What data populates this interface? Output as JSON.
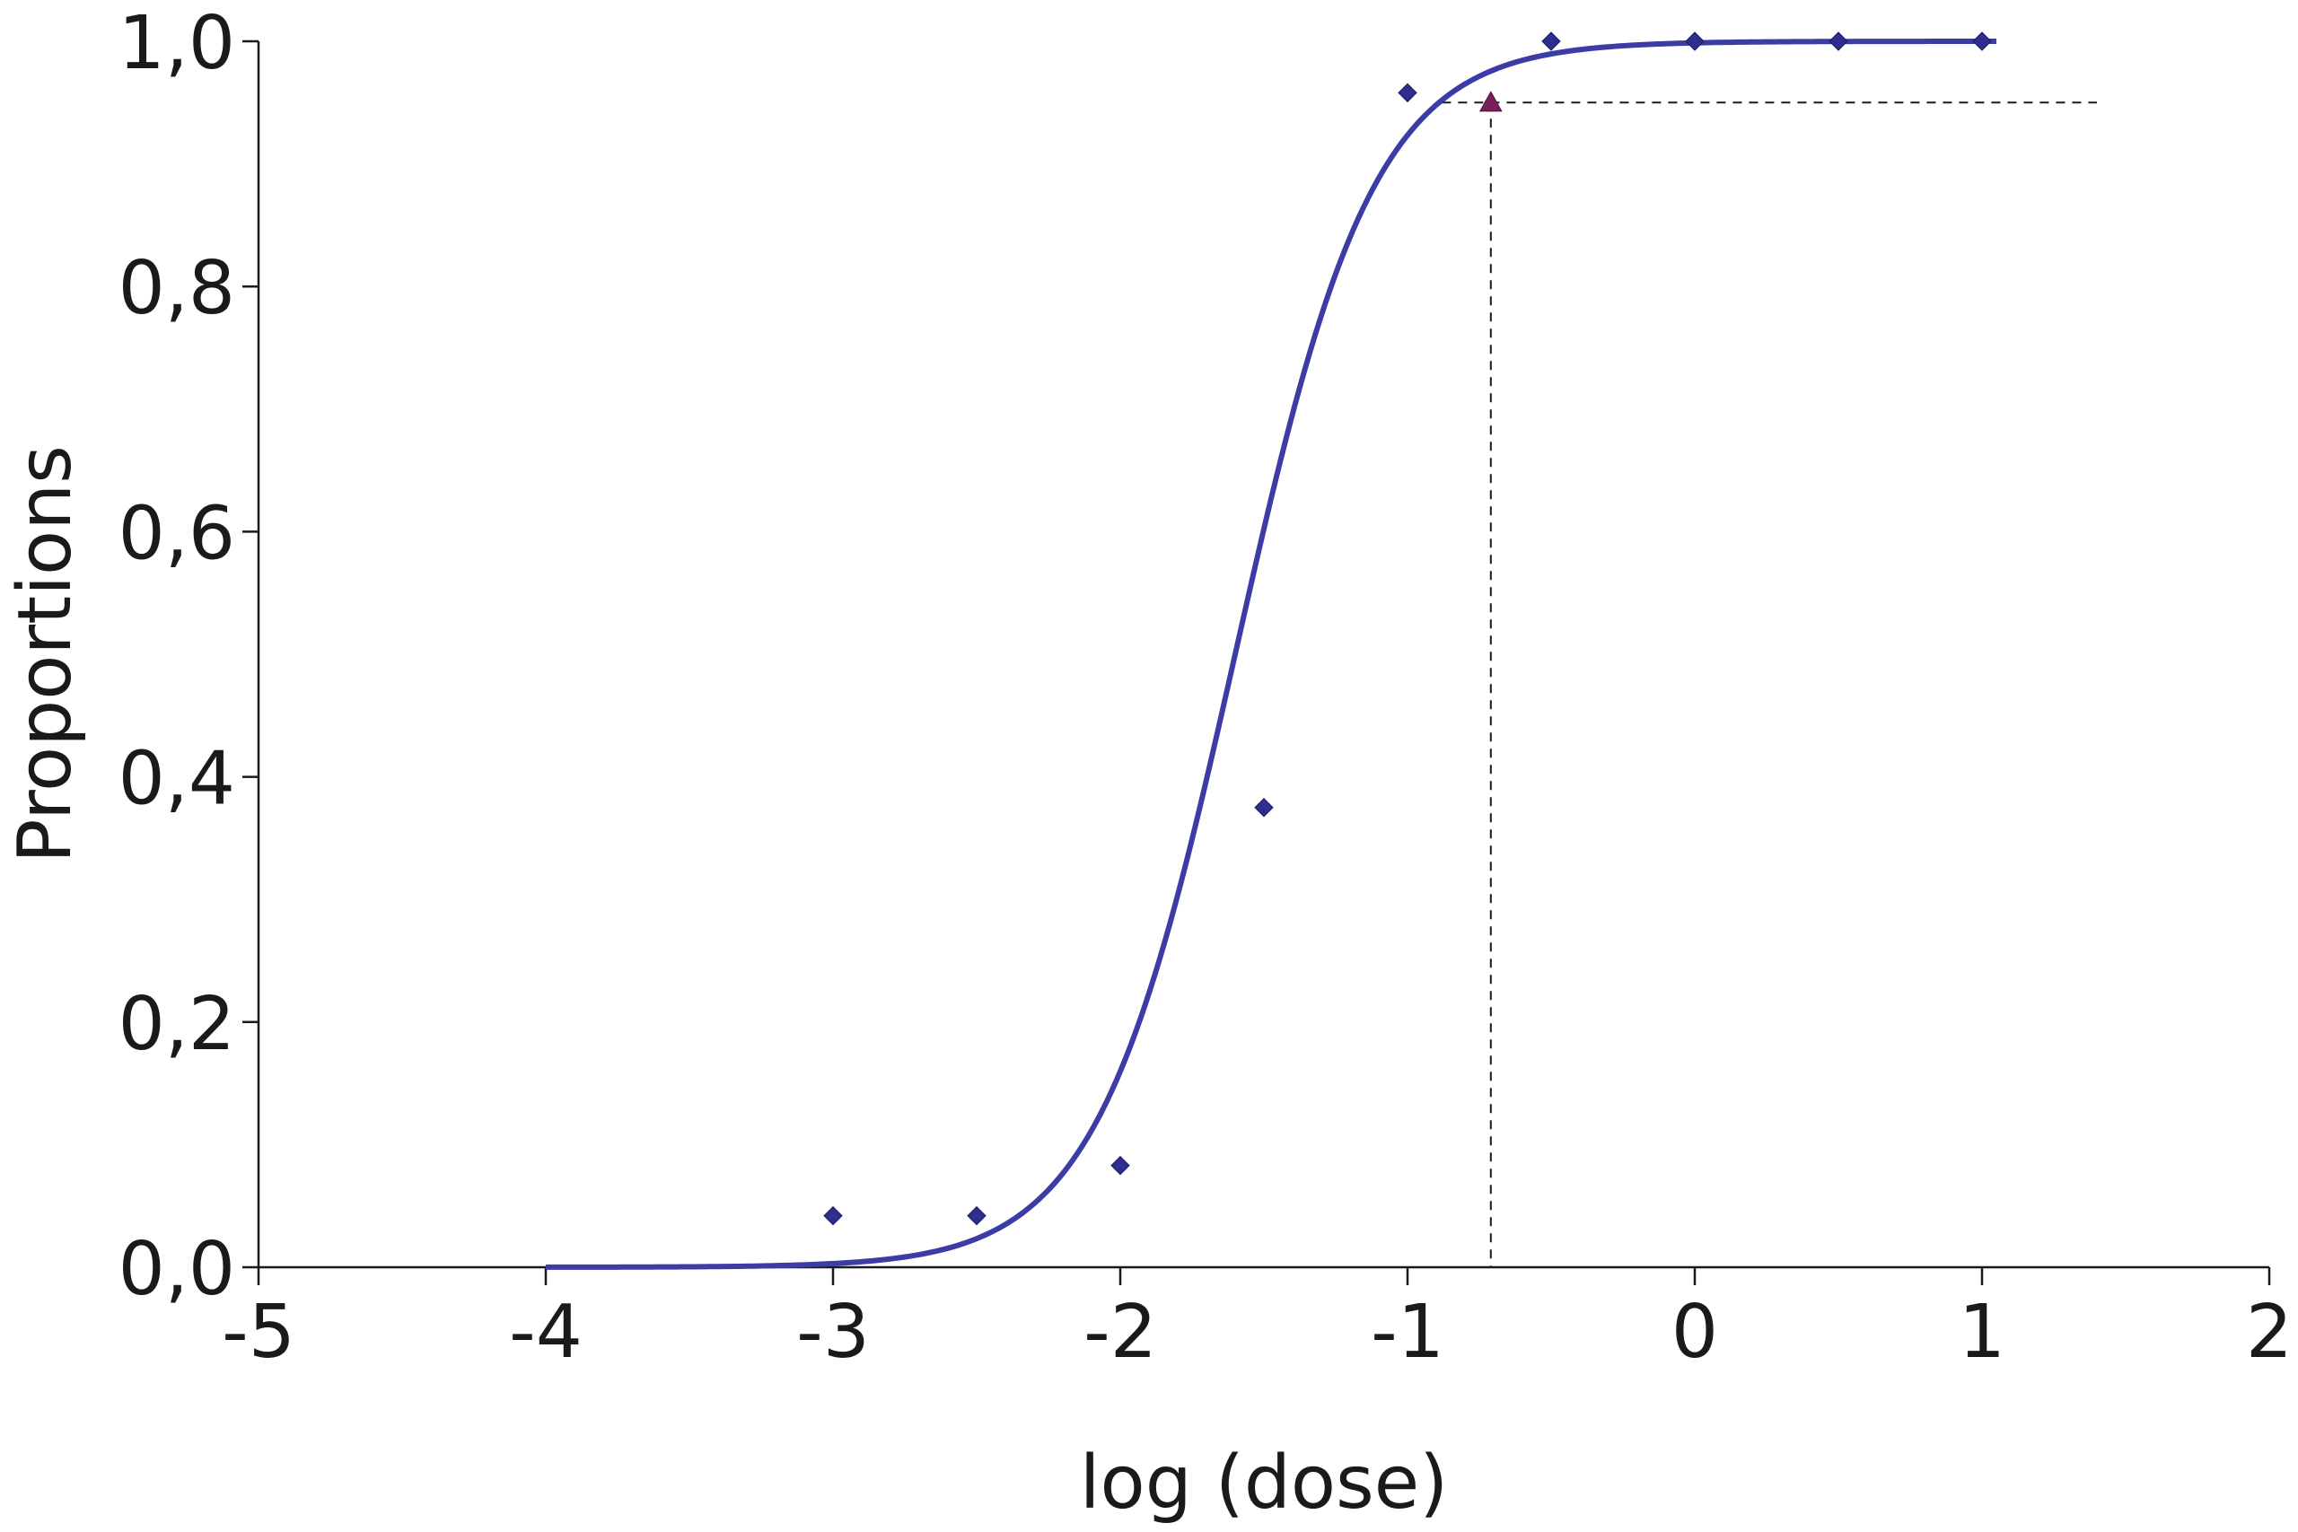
{
  "chart_data": {
    "type": "scatter",
    "title": "",
    "xlabel": "log (dose)",
    "ylabel": "Proportions",
    "xlim": [
      -5,
      2
    ],
    "ylim": [
      0,
      1
    ],
    "x_ticks": [
      -5,
      -4,
      -3,
      -2,
      -1,
      0,
      1,
      2
    ],
    "x_tick_labels": [
      "-5",
      "-4",
      "-3",
      "-2",
      "-1",
      "0",
      "1",
      "2"
    ],
    "y_ticks": [
      0,
      0.2,
      0.4,
      0.6,
      0.8,
      1.0
    ],
    "y_tick_labels": [
      "0,0",
      "0,2",
      "0,4",
      "0,6",
      "0,8",
      "1,0"
    ],
    "grid": false,
    "series": [
      {
        "kind": "points",
        "marker": "diamond",
        "color": "#2e2e8f",
        "x": [
          -3,
          -2.5,
          -2,
          -1.5,
          -1,
          -0.5,
          0,
          0.5,
          1
        ],
        "y": [
          0.042,
          0.042,
          0.083,
          0.375,
          0.958,
          1.0,
          1.0,
          1.0,
          1.0
        ]
      },
      {
        "kind": "fitted-curve",
        "color": "#3c3ca6",
        "x_range": [
          -4,
          1.05
        ],
        "midpoint": -1.6,
        "slope": 4.15
      },
      {
        "kind": "highlight-point",
        "marker": "triangle",
        "color": "#7a1f5a",
        "x": -0.71,
        "y": 0.95
      }
    ],
    "reference_lines": {
      "horizontal_y": 0.95,
      "horizontal_x_end": 1.4,
      "vertical_x": -0.71
    }
  }
}
